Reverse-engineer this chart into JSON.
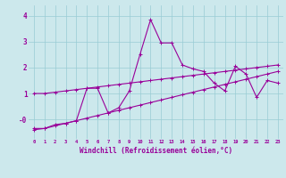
{
  "xlabel": "Windchill (Refroidissement éolien,°C)",
  "bg_color": "#cce8ec",
  "grid_color": "#99ccd4",
  "line_color": "#990099",
  "x_values": [
    0,
    1,
    2,
    3,
    4,
    5,
    6,
    7,
    8,
    9,
    10,
    11,
    12,
    13,
    14,
    15,
    16,
    17,
    18,
    19,
    20,
    21,
    22,
    23
  ],
  "line1_y": [
    -0.35,
    -0.35,
    -0.2,
    -0.15,
    -0.05,
    1.2,
    1.2,
    0.25,
    0.45,
    1.1,
    2.5,
    3.85,
    2.95,
    2.95,
    2.1,
    1.95,
    1.85,
    1.4,
    1.1,
    2.05,
    1.75,
    0.85,
    1.5,
    1.4
  ],
  "line2_y": [
    1.0,
    1.0,
    1.05,
    1.1,
    1.15,
    1.2,
    1.25,
    1.3,
    1.35,
    1.4,
    1.45,
    1.5,
    1.55,
    1.6,
    1.65,
    1.7,
    1.75,
    1.8,
    1.85,
    1.9,
    1.95,
    2.0,
    2.05,
    2.1
  ],
  "line3_y": [
    -0.4,
    -0.35,
    -0.25,
    -0.15,
    -0.05,
    0.05,
    0.15,
    0.25,
    0.35,
    0.45,
    0.55,
    0.65,
    0.75,
    0.85,
    0.95,
    1.05,
    1.15,
    1.25,
    1.35,
    1.45,
    1.55,
    1.65,
    1.75,
    1.85
  ],
  "ylim": [
    -0.75,
    4.4
  ],
  "yticks": [
    0,
    1,
    2,
    3,
    4
  ],
  "ytick_labels": [
    "-0",
    "1",
    "2",
    "3",
    "4"
  ],
  "xlim": [
    -0.5,
    23.5
  ],
  "xticks": [
    0,
    1,
    2,
    3,
    4,
    5,
    6,
    7,
    8,
    9,
    10,
    11,
    12,
    13,
    14,
    15,
    16,
    17,
    18,
    19,
    20,
    21,
    22,
    23
  ]
}
